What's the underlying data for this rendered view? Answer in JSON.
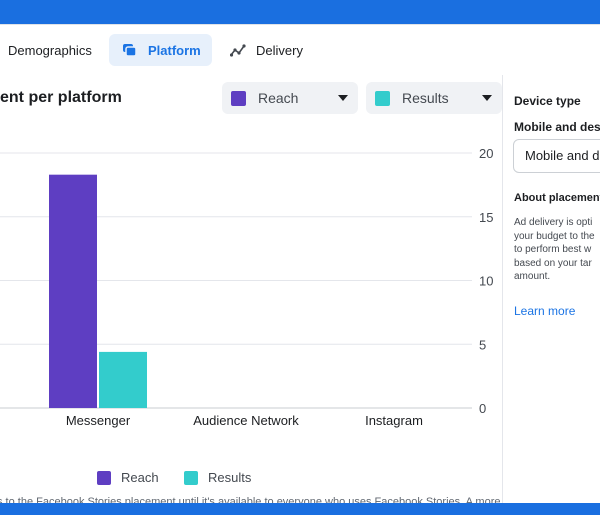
{
  "tabs": [
    {
      "label": "Demographics",
      "icon": "none"
    },
    {
      "label": "Platform",
      "icon": "platform-icon",
      "active": true
    },
    {
      "label": "Delivery",
      "icon": "delivery-icon"
    }
  ],
  "chart_header": {
    "title": "ent per platform",
    "metric_select_1": {
      "label": "Reach",
      "color": "#5e3ec2"
    },
    "metric_select_2": {
      "label": "Results",
      "color": "#33cccc"
    }
  },
  "chart_data": {
    "type": "bar",
    "title": "ent per platform",
    "categories": [
      "Messenger",
      "Audience Network",
      "Instagram"
    ],
    "series": [
      {
        "name": "Reach",
        "values": [
          18.3,
          0,
          0
        ],
        "color": "#5e3ec2"
      },
      {
        "name": "Results",
        "values": [
          4.4,
          0,
          0
        ],
        "color": "#33cccc"
      }
    ],
    "y_ticks": [
      "20",
      "15",
      "10",
      "5",
      "0"
    ],
    "ylim": [
      0,
      20
    ],
    "y_axis_side": "right",
    "grid": true,
    "legend": "bottom-center"
  },
  "legend": [
    {
      "label": "Reach",
      "color": "#5e3ec2"
    },
    {
      "label": "Results",
      "color": "#33cccc"
    }
  ],
  "footnote": {
    "line1": "s to the Facebook Stories placement until it's available to everyone who uses Facebook Stories. A more",
    "line2": "."
  },
  "side_panel": {
    "heading": "Device type",
    "subheading": "Mobile and des",
    "field_value": "Mobile and de",
    "about_title": "About placement",
    "body_lines": [
      "Ad delivery is opti",
      "your budget to the",
      "to perform best w",
      "based on your tar",
      "amount."
    ],
    "link": "Learn more"
  }
}
